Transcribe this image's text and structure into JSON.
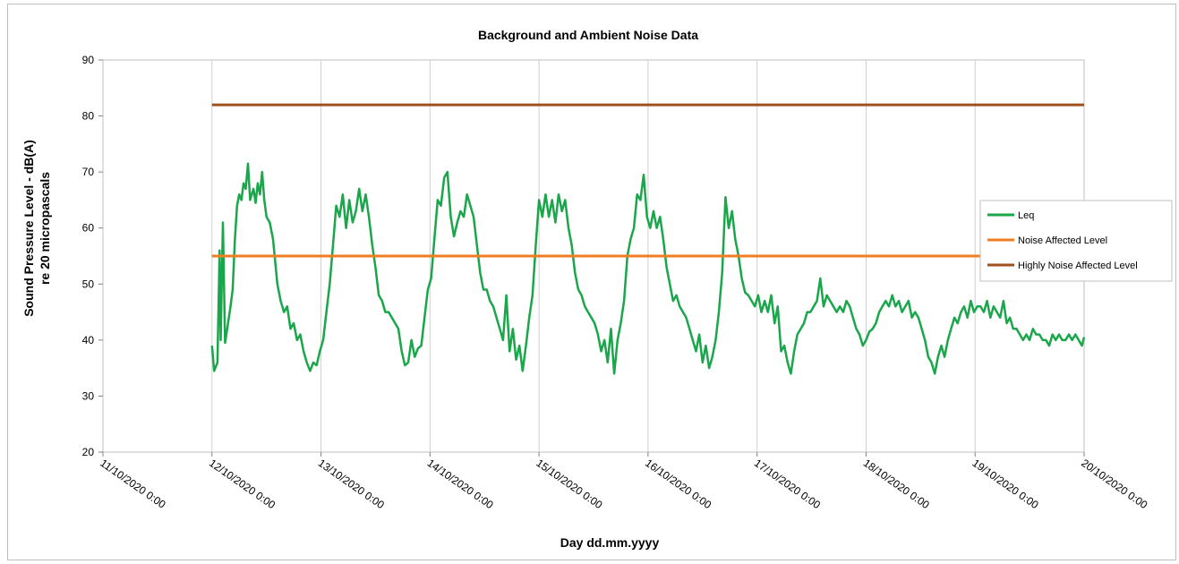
{
  "chart_data": {
    "type": "line",
    "title": "Background and Ambient Noise Data",
    "ylabel_line1": "Sound Pressure Level - dB(A)",
    "ylabel_line2": "re 20 micropascals",
    "xlabel": "Day dd.mm.yyyy",
    "ylim": [
      20,
      90
    ],
    "yticks": [
      20,
      30,
      40,
      50,
      60,
      70,
      80,
      90
    ],
    "xlim": [
      0,
      9
    ],
    "xticks": [
      "11/10/2020 0:00",
      "12/10/2020 0:00",
      "13/10/2020 0:00",
      "14/10/2020 0:00",
      "15/10/2020 0:00",
      "16/10/2020 0:00",
      "17/10/2020 0:00",
      "18/10/2020 0:00",
      "19/10/2020 0:00",
      "20/10/2020 0:00"
    ],
    "grid": "vertical",
    "legend_position": "right",
    "series": [
      {
        "name": "Leq",
        "color": "#1aa64a",
        "points": [
          [
            1.0,
            39
          ],
          [
            1.02,
            34.5
          ],
          [
            1.05,
            36
          ],
          [
            1.07,
            56
          ],
          [
            1.08,
            40
          ],
          [
            1.1,
            61
          ],
          [
            1.12,
            39.5
          ],
          [
            1.14,
            42
          ],
          [
            1.17,
            46
          ],
          [
            1.19,
            49
          ],
          [
            1.21,
            58
          ],
          [
            1.23,
            64
          ],
          [
            1.25,
            66
          ],
          [
            1.27,
            65
          ],
          [
            1.29,
            68
          ],
          [
            1.31,
            67
          ],
          [
            1.33,
            71.5
          ],
          [
            1.35,
            65
          ],
          [
            1.38,
            67
          ],
          [
            1.4,
            64.5
          ],
          [
            1.42,
            68
          ],
          [
            1.44,
            66
          ],
          [
            1.46,
            70
          ],
          [
            1.48,
            65
          ],
          [
            1.5,
            62
          ],
          [
            1.53,
            61
          ],
          [
            1.56,
            58
          ],
          [
            1.58,
            54
          ],
          [
            1.6,
            50
          ],
          [
            1.63,
            47
          ],
          [
            1.66,
            45
          ],
          [
            1.69,
            46
          ],
          [
            1.72,
            42
          ],
          [
            1.75,
            43
          ],
          [
            1.78,
            40
          ],
          [
            1.81,
            41
          ],
          [
            1.84,
            38
          ],
          [
            1.87,
            36
          ],
          [
            1.9,
            34.5
          ],
          [
            1.93,
            36
          ],
          [
            1.96,
            35.5
          ],
          [
            1.99,
            38
          ],
          [
            2.02,
            40
          ],
          [
            2.05,
            45
          ],
          [
            2.08,
            50
          ],
          [
            2.11,
            57
          ],
          [
            2.14,
            64
          ],
          [
            2.17,
            62
          ],
          [
            2.2,
            66
          ],
          [
            2.23,
            60
          ],
          [
            2.26,
            65
          ],
          [
            2.29,
            61
          ],
          [
            2.32,
            63
          ],
          [
            2.35,
            67
          ],
          [
            2.38,
            63
          ],
          [
            2.41,
            66
          ],
          [
            2.44,
            62
          ],
          [
            2.47,
            57
          ],
          [
            2.5,
            53
          ],
          [
            2.53,
            48
          ],
          [
            2.56,
            47
          ],
          [
            2.59,
            45
          ],
          [
            2.62,
            45
          ],
          [
            2.65,
            44
          ],
          [
            2.68,
            43
          ],
          [
            2.71,
            42
          ],
          [
            2.74,
            38
          ],
          [
            2.77,
            35.5
          ],
          [
            2.8,
            36
          ],
          [
            2.83,
            40
          ],
          [
            2.86,
            37
          ],
          [
            2.89,
            38.5
          ],
          [
            2.92,
            39
          ],
          [
            2.95,
            44
          ],
          [
            2.98,
            49
          ],
          [
            3.01,
            51
          ],
          [
            3.04,
            58
          ],
          [
            3.07,
            65
          ],
          [
            3.1,
            64
          ],
          [
            3.13,
            69
          ],
          [
            3.16,
            70
          ],
          [
            3.19,
            62
          ],
          [
            3.22,
            58.5
          ],
          [
            3.25,
            61
          ],
          [
            3.28,
            63
          ],
          [
            3.31,
            62
          ],
          [
            3.34,
            66
          ],
          [
            3.37,
            64
          ],
          [
            3.4,
            62
          ],
          [
            3.43,
            57
          ],
          [
            3.46,
            52
          ],
          [
            3.49,
            49
          ],
          [
            3.52,
            49
          ],
          [
            3.55,
            47
          ],
          [
            3.58,
            46
          ],
          [
            3.61,
            44
          ],
          [
            3.64,
            42
          ],
          [
            3.67,
            40
          ],
          [
            3.7,
            48
          ],
          [
            3.73,
            38
          ],
          [
            3.76,
            42
          ],
          [
            3.79,
            36.5
          ],
          [
            3.82,
            39
          ],
          [
            3.85,
            34.5
          ],
          [
            3.88,
            39
          ],
          [
            3.91,
            44
          ],
          [
            3.94,
            48
          ],
          [
            3.97,
            57
          ],
          [
            4.0,
            65
          ],
          [
            4.03,
            62
          ],
          [
            4.06,
            66
          ],
          [
            4.09,
            62
          ],
          [
            4.12,
            65
          ],
          [
            4.15,
            61
          ],
          [
            4.18,
            66
          ],
          [
            4.21,
            63
          ],
          [
            4.24,
            65
          ],
          [
            4.27,
            60
          ],
          [
            4.3,
            57
          ],
          [
            4.33,
            52
          ],
          [
            4.36,
            49
          ],
          [
            4.39,
            48
          ],
          [
            4.42,
            46
          ],
          [
            4.45,
            45
          ],
          [
            4.48,
            44
          ],
          [
            4.51,
            43
          ],
          [
            4.54,
            41
          ],
          [
            4.57,
            38
          ],
          [
            4.6,
            40
          ],
          [
            4.63,
            36
          ],
          [
            4.66,
            42
          ],
          [
            4.69,
            34
          ],
          [
            4.72,
            40
          ],
          [
            4.75,
            43
          ],
          [
            4.78,
            47
          ],
          [
            4.81,
            55
          ],
          [
            4.84,
            58
          ],
          [
            4.87,
            60
          ],
          [
            4.9,
            66
          ],
          [
            4.93,
            65
          ],
          [
            4.96,
            69.5
          ],
          [
            4.99,
            62
          ],
          [
            5.02,
            60
          ],
          [
            5.05,
            63
          ],
          [
            5.08,
            60
          ],
          [
            5.11,
            62
          ],
          [
            5.14,
            58
          ],
          [
            5.17,
            53
          ],
          [
            5.2,
            50
          ],
          [
            5.23,
            47
          ],
          [
            5.26,
            48
          ],
          [
            5.29,
            46
          ],
          [
            5.32,
            45
          ],
          [
            5.35,
            44
          ],
          [
            5.38,
            42
          ],
          [
            5.41,
            40
          ],
          [
            5.44,
            38
          ],
          [
            5.47,
            41
          ],
          [
            5.5,
            36
          ],
          [
            5.53,
            39
          ],
          [
            5.56,
            35
          ],
          [
            5.59,
            37
          ],
          [
            5.62,
            40
          ],
          [
            5.65,
            45
          ],
          [
            5.68,
            52
          ],
          [
            5.71,
            65.5
          ],
          [
            5.74,
            60
          ],
          [
            5.77,
            63
          ],
          [
            5.8,
            58
          ],
          [
            5.83,
            55
          ],
          [
            5.86,
            51
          ],
          [
            5.89,
            48.5
          ],
          [
            5.92,
            48
          ],
          [
            5.95,
            47
          ],
          [
            5.98,
            46
          ],
          [
            6.01,
            48
          ],
          [
            6.04,
            45
          ],
          [
            6.07,
            47
          ],
          [
            6.1,
            45
          ],
          [
            6.13,
            48
          ],
          [
            6.16,
            43
          ],
          [
            6.19,
            46
          ],
          [
            6.22,
            38
          ],
          [
            6.25,
            39
          ],
          [
            6.28,
            36
          ],
          [
            6.31,
            34
          ],
          [
            6.34,
            38
          ],
          [
            6.37,
            41
          ],
          [
            6.4,
            42
          ],
          [
            6.43,
            43
          ],
          [
            6.46,
            45
          ],
          [
            6.49,
            45
          ],
          [
            6.52,
            46
          ],
          [
            6.55,
            47
          ],
          [
            6.58,
            51
          ],
          [
            6.61,
            46
          ],
          [
            6.64,
            48
          ],
          [
            6.67,
            47
          ],
          [
            6.7,
            46
          ],
          [
            6.73,
            45
          ],
          [
            6.76,
            46
          ],
          [
            6.79,
            45
          ],
          [
            6.82,
            47
          ],
          [
            6.85,
            46
          ],
          [
            6.88,
            44
          ],
          [
            6.91,
            42
          ],
          [
            6.94,
            41
          ],
          [
            6.97,
            39
          ],
          [
            7.0,
            40
          ],
          [
            7.03,
            41.5
          ],
          [
            7.06,
            42
          ],
          [
            7.09,
            43
          ],
          [
            7.12,
            45
          ],
          [
            7.15,
            46
          ],
          [
            7.18,
            47
          ],
          [
            7.21,
            46
          ],
          [
            7.24,
            48
          ],
          [
            7.27,
            46
          ],
          [
            7.3,
            47
          ],
          [
            7.33,
            45
          ],
          [
            7.36,
            46
          ],
          [
            7.39,
            47
          ],
          [
            7.42,
            44
          ],
          [
            7.45,
            45
          ],
          [
            7.48,
            44
          ],
          [
            7.51,
            42
          ],
          [
            7.54,
            40
          ],
          [
            7.57,
            37
          ],
          [
            7.6,
            36
          ],
          [
            7.63,
            34
          ],
          [
            7.66,
            37
          ],
          [
            7.69,
            39
          ],
          [
            7.72,
            37
          ],
          [
            7.75,
            40
          ],
          [
            7.78,
            42
          ],
          [
            7.81,
            44
          ],
          [
            7.84,
            43
          ],
          [
            7.87,
            45
          ],
          [
            7.9,
            46
          ],
          [
            7.93,
            44
          ],
          [
            7.96,
            47
          ],
          [
            7.99,
            45
          ],
          [
            8.02,
            46
          ],
          [
            8.05,
            46
          ],
          [
            8.08,
            45
          ],
          [
            8.11,
            47
          ],
          [
            8.14,
            44
          ],
          [
            8.17,
            46
          ],
          [
            8.2,
            45
          ],
          [
            8.23,
            44
          ],
          [
            8.26,
            47
          ],
          [
            8.29,
            43
          ],
          [
            8.32,
            44
          ],
          [
            8.35,
            42
          ],
          [
            8.38,
            42
          ],
          [
            8.41,
            41
          ],
          [
            8.44,
            40
          ],
          [
            8.47,
            41
          ],
          [
            8.5,
            40
          ],
          [
            8.53,
            42
          ],
          [
            8.56,
            41
          ],
          [
            8.59,
            41
          ],
          [
            8.62,
            40
          ],
          [
            8.65,
            40
          ],
          [
            8.68,
            39
          ],
          [
            8.71,
            41
          ],
          [
            8.74,
            40
          ],
          [
            8.77,
            41
          ],
          [
            8.8,
            40
          ],
          [
            8.83,
            40
          ],
          [
            8.86,
            41
          ],
          [
            8.89,
            40
          ],
          [
            8.92,
            41
          ],
          [
            8.95,
            40
          ],
          [
            8.98,
            39
          ],
          [
            9.0,
            40.5
          ]
        ]
      },
      {
        "name": "Noise Affected Level",
        "color": "#f07d22",
        "x": [
          1,
          9
        ],
        "values": [
          55,
          55
        ]
      },
      {
        "name": "Highly Noise Affected Level",
        "color": "#a0501e",
        "x": [
          1,
          9
        ],
        "values": [
          82,
          82
        ]
      }
    ]
  }
}
